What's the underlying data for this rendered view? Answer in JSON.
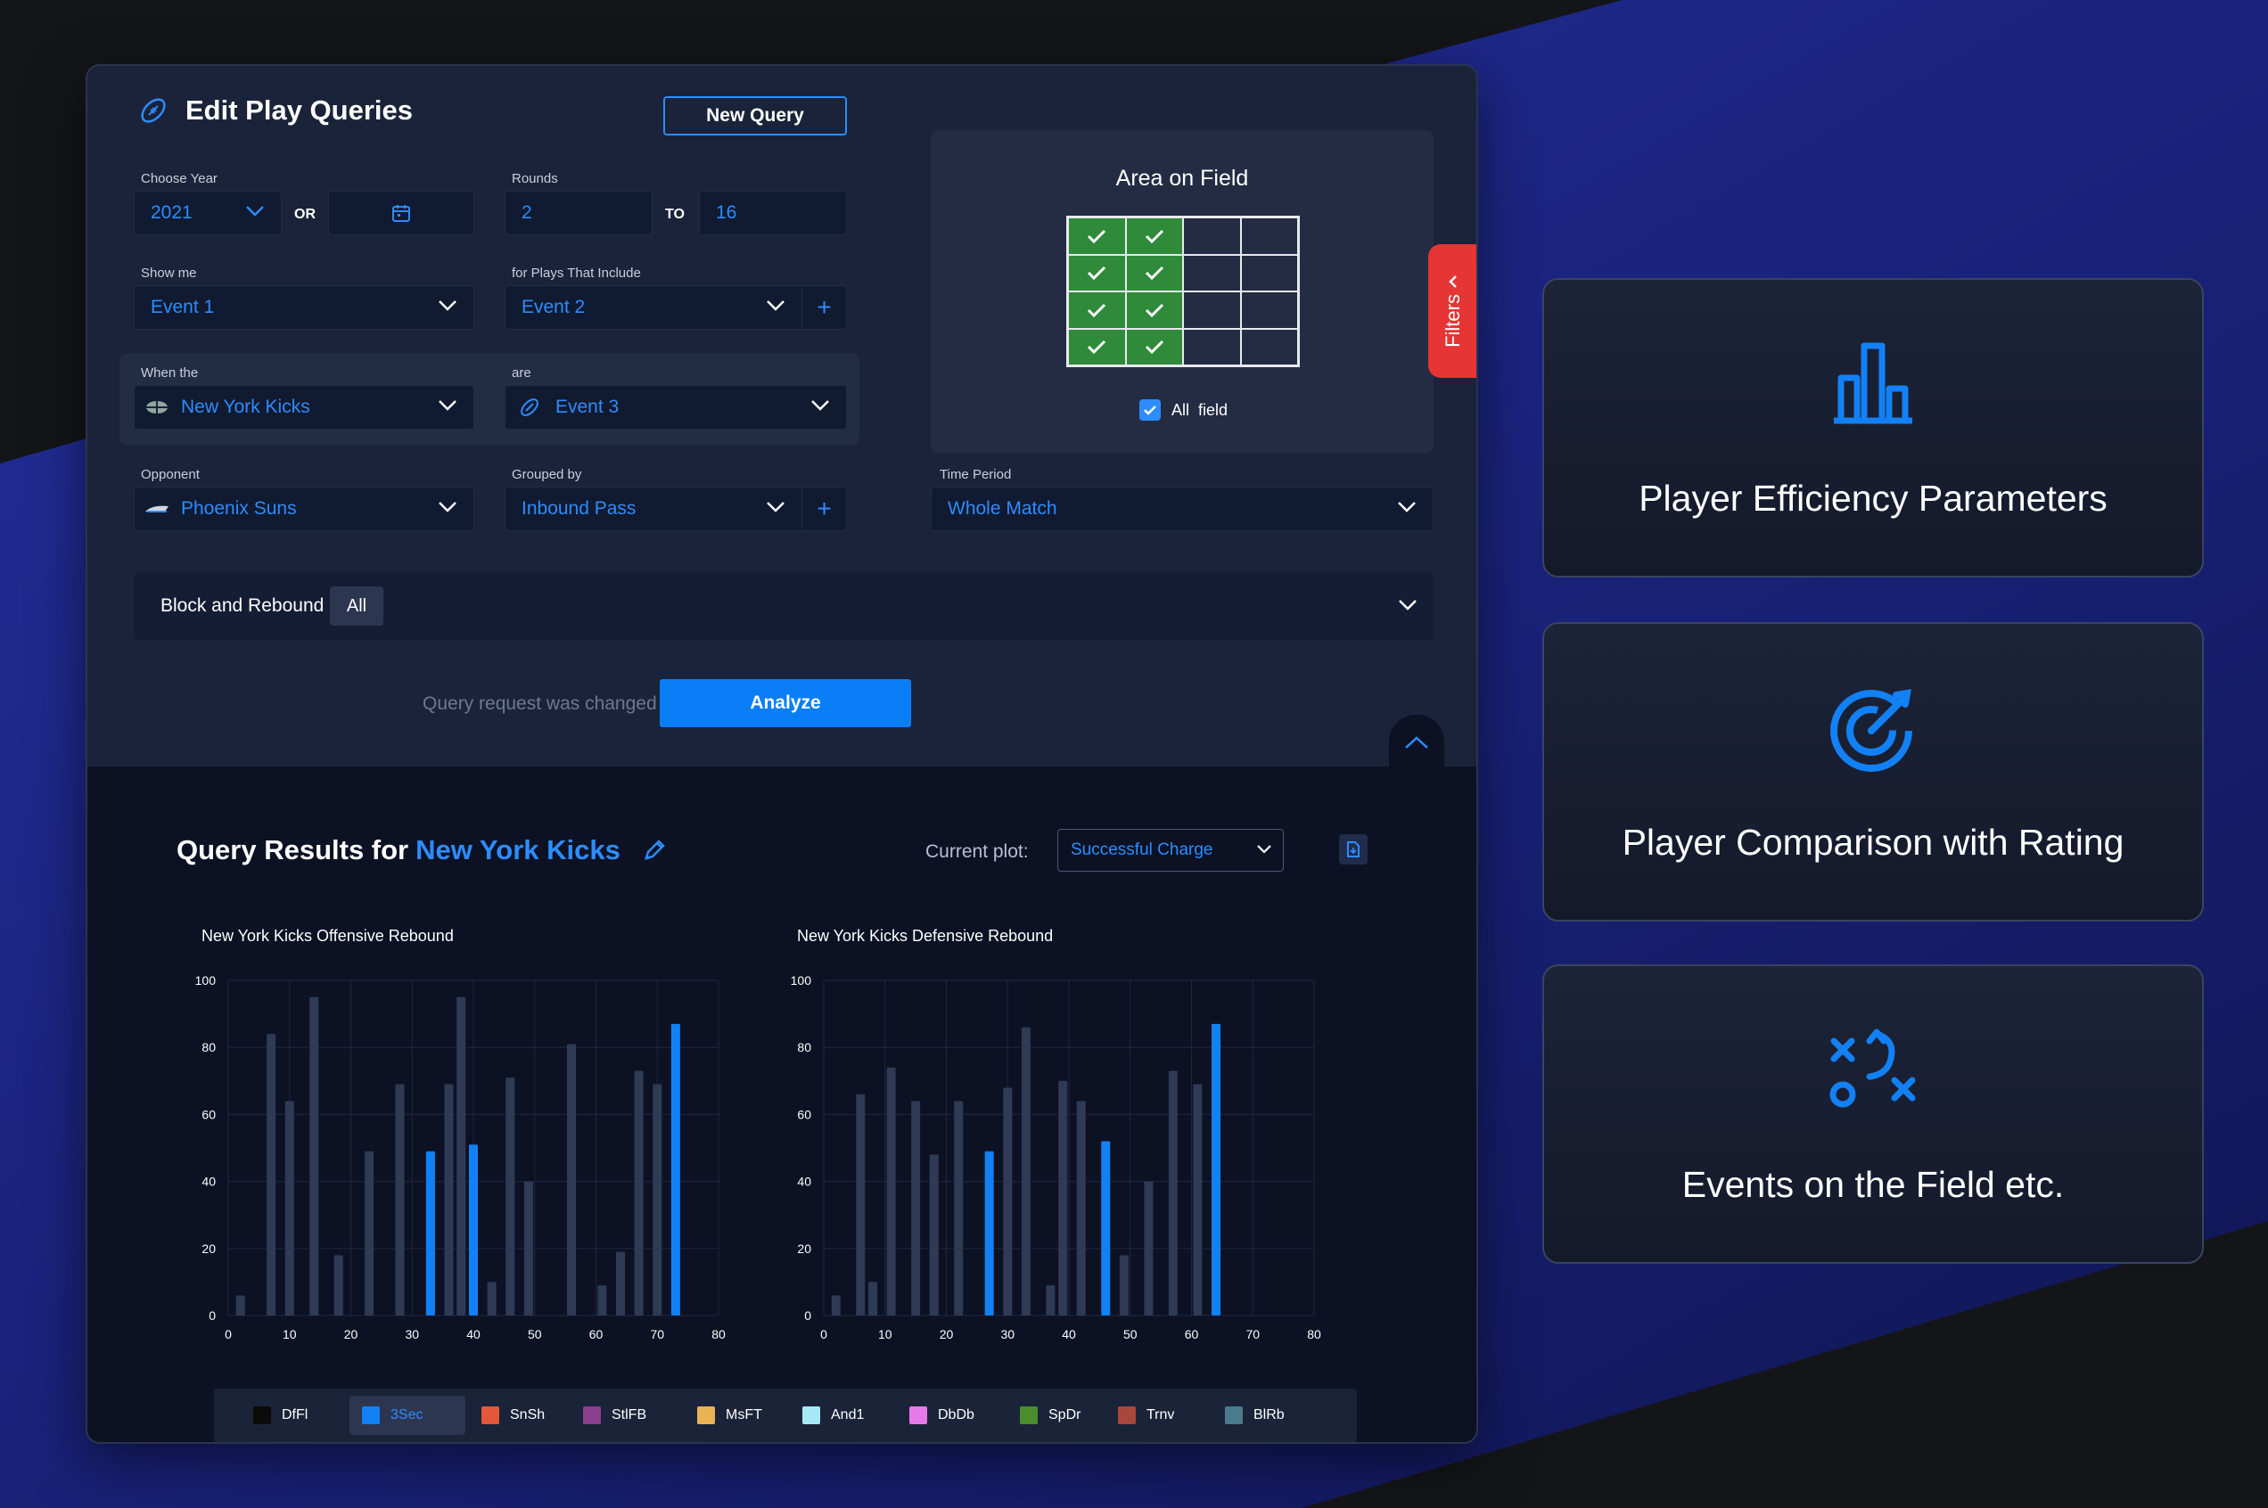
{
  "header": {
    "title": "Edit Play Queries",
    "new_query": "New Query"
  },
  "form": {
    "year": {
      "label": "Choose Year",
      "value": "2021",
      "or": "OR"
    },
    "rounds": {
      "label": "Rounds",
      "from": "2",
      "to_word": "TO",
      "to": "16"
    },
    "show_me": {
      "label": "Show me",
      "value": "Event 1"
    },
    "plays_include": {
      "label": "for Plays That Include",
      "value": "Event 2"
    },
    "when_the": {
      "label": "When the",
      "value": "New York Kicks"
    },
    "are": {
      "label": "are",
      "value": "Event 3"
    },
    "opponent": {
      "label": "Opponent",
      "value": "Phoenix Suns"
    },
    "grouped_by": {
      "label": "Grouped by",
      "value": "Inbound Pass"
    },
    "time_period": {
      "label": "Time Period",
      "value": "Whole Match"
    },
    "block": {
      "label": "Block and Rebound",
      "chip": "All"
    }
  },
  "area": {
    "title": "Area on Field",
    "grid": [
      [
        1,
        1,
        0,
        0
      ],
      [
        1,
        1,
        0,
        0
      ],
      [
        1,
        1,
        0,
        0
      ],
      [
        1,
        1,
        0,
        0
      ]
    ],
    "all_field": "All  field"
  },
  "filters_tab": "Filters",
  "status": {
    "changed": "Query request was changed",
    "analyze": "Analyze"
  },
  "results": {
    "title_prefix": "Query Results for",
    "team": "New York Kicks",
    "current_plot_label": "Current plot:",
    "current_plot": "Successful Charge"
  },
  "chart_data": [
    {
      "type": "bar",
      "title": "New York Kicks Offensive Rebound",
      "ylim": [
        0,
        100
      ],
      "yticks": [
        0,
        20,
        40,
        60,
        80,
        100
      ],
      "xlim": [
        0,
        80
      ],
      "xticks": [
        0,
        10,
        20,
        30,
        40,
        50,
        60,
        70,
        80
      ],
      "x": [
        2,
        7,
        10,
        14,
        18,
        23,
        28,
        33,
        36,
        38,
        40,
        43,
        46,
        49,
        56,
        61,
        64,
        67,
        70,
        73,
        77
      ],
      "values": [
        6,
        84,
        64,
        95,
        18,
        49,
        69,
        49,
        69,
        95,
        51,
        10,
        71,
        40,
        81,
        9,
        19,
        73,
        69,
        87,
        0
      ],
      "highlight": [
        7,
        10,
        19
      ],
      "grid": true
    },
    {
      "type": "bar",
      "title": "New York Kicks Defensive Rebound",
      "ylim": [
        0,
        100
      ],
      "yticks": [
        0,
        20,
        40,
        60,
        80,
        100
      ],
      "xlim": [
        0,
        80
      ],
      "xticks": [
        0,
        10,
        20,
        30,
        40,
        50,
        60,
        70,
        80
      ],
      "x": [
        2,
        6,
        8,
        11,
        15,
        18,
        22,
        27,
        30,
        33,
        37,
        39,
        42,
        46,
        49,
        53,
        57,
        61,
        64,
        67,
        70,
        73,
        77
      ],
      "values": [
        6,
        66,
        10,
        74,
        64,
        48,
        64,
        49,
        68,
        86,
        9,
        70,
        64,
        52,
        18,
        40,
        73,
        69,
        87,
        0,
        0,
        0,
        0
      ],
      "highlight": [
        7,
        13,
        18
      ],
      "grid": true
    }
  ],
  "legend": [
    {
      "label": "DfFl",
      "color": "#0b0b0b"
    },
    {
      "label": "3Sec",
      "color": "#1281f5",
      "selected": true
    },
    {
      "label": "SnSh",
      "color": "#e3573a"
    },
    {
      "label": "StlFB",
      "color": "#8b3f8c"
    },
    {
      "label": "MsFT",
      "color": "#e9b257"
    },
    {
      "label": "And1",
      "color": "#a7e8f6"
    },
    {
      "label": "DbDb",
      "color": "#e77ae8"
    },
    {
      "label": "SpDr",
      "color": "#4b8d2d"
    },
    {
      "label": "Trnv",
      "color": "#a8473b"
    },
    {
      "label": "BlRb",
      "color": "#4b7a8c"
    }
  ],
  "cards": [
    {
      "text": "Player Efficiency Parameters",
      "icon": "bar-chart-icon"
    },
    {
      "text": "Player Comparison with Rating",
      "icon": "target-icon"
    },
    {
      "text": "Events on the Field etc.",
      "icon": "tactics-icon"
    }
  ],
  "colors": {
    "accent": "#2d8cff",
    "bar": "#2f3a55",
    "highlight": "#1281f5",
    "filters": "#e63535"
  }
}
